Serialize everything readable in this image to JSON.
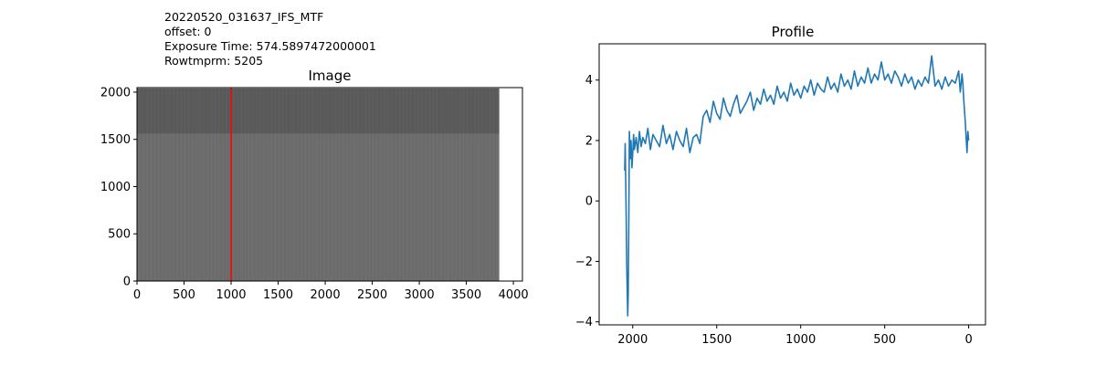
{
  "header_lines": [
    "20220520_031637_IFS_MTF",
    "offset: 0",
    "Exposure Time: 574.5897472000001",
    "Rowtmprm: 5205"
  ],
  "chart_data": [
    {
      "type": "heatmap",
      "title": "Image",
      "xlabel": "",
      "ylabel": "",
      "xlim": [
        0,
        4096
      ],
      "ylim": [
        0,
        2048
      ],
      "x_ticks": [
        "0",
        "500",
        "1000",
        "1500",
        "2000",
        "2500",
        "3000",
        "3500",
        "4000"
      ],
      "y_ticks": [
        "0",
        "500",
        "1000",
        "1500",
        "2000"
      ],
      "image_extent_x": [
        0,
        3850
      ],
      "colormap": "gray",
      "column_marker": 1000,
      "column_marker_color": "#ff0000",
      "regions": [
        {
          "rows": [
            0,
            1560
          ],
          "shade": "#6e6e6e"
        },
        {
          "rows": [
            1560,
            2040
          ],
          "shade": "#5c5c5c"
        }
      ]
    },
    {
      "type": "line",
      "title": "Profile",
      "xlabel": "",
      "ylabel": "",
      "x_reversed": true,
      "xlim": [
        2200,
        -100
      ],
      "ylim": [
        -4.1,
        5.2
      ],
      "x_ticks": [
        2000,
        1500,
        1000,
        500,
        0
      ],
      "y_ticks": [
        -4,
        -2,
        0,
        2,
        4
      ],
      "color": "#1f77b4",
      "series": [
        {
          "x": [
            2048,
            2045,
            2040,
            2035,
            2030,
            2027,
            2024,
            2020,
            2015,
            2010,
            2005,
            2000,
            1995,
            1990,
            1980,
            1970,
            1960,
            1950,
            1940,
            1925,
            1910,
            1895,
            1880,
            1860,
            1840,
            1820,
            1800,
            1780,
            1760,
            1740,
            1720,
            1700,
            1680,
            1660,
            1640,
            1620,
            1600,
            1590,
            1580,
            1560,
            1540,
            1520,
            1500,
            1480,
            1460,
            1440,
            1420,
            1400,
            1380,
            1360,
            1340,
            1320,
            1300,
            1280,
            1260,
            1240,
            1220,
            1200,
            1180,
            1160,
            1140,
            1120,
            1100,
            1080,
            1060,
            1040,
            1020,
            1000,
            980,
            960,
            940,
            920,
            900,
            880,
            860,
            840,
            820,
            800,
            780,
            760,
            740,
            720,
            700,
            680,
            660,
            640,
            620,
            600,
            580,
            560,
            540,
            520,
            500,
            480,
            460,
            440,
            420,
            400,
            380,
            360,
            340,
            320,
            300,
            280,
            260,
            240,
            220,
            200,
            180,
            160,
            140,
            120,
            100,
            80,
            60,
            50,
            40,
            35,
            30,
            25,
            20,
            15,
            10,
            5,
            0
          ],
          "y": [
            1.0,
            1.9,
            0.0,
            -2.3,
            -3.8,
            -3.1,
            -1.0,
            2.3,
            1.4,
            2.0,
            1.1,
            1.6,
            2.2,
            1.7,
            2.1,
            1.6,
            2.3,
            1.8,
            2.1,
            1.9,
            2.4,
            1.7,
            2.2,
            2.0,
            1.8,
            2.5,
            1.9,
            2.2,
            1.7,
            2.3,
            2.0,
            1.8,
            2.4,
            1.6,
            2.1,
            2.2,
            1.9,
            2.4,
            2.8,
            3.0,
            2.6,
            3.3,
            2.9,
            2.7,
            3.4,
            3.0,
            2.8,
            3.2,
            3.5,
            2.9,
            3.1,
            3.3,
            3.6,
            3.0,
            3.4,
            3.2,
            3.7,
            3.3,
            3.5,
            3.2,
            3.8,
            3.4,
            3.6,
            3.3,
            3.9,
            3.5,
            3.7,
            3.4,
            3.8,
            3.6,
            4.0,
            3.5,
            3.9,
            3.7,
            3.6,
            4.1,
            3.7,
            3.9,
            3.6,
            4.2,
            3.8,
            4.0,
            3.7,
            4.3,
            3.8,
            4.1,
            3.9,
            4.4,
            3.9,
            4.2,
            4.0,
            4.6,
            4.0,
            4.2,
            3.9,
            4.3,
            4.1,
            3.8,
            4.2,
            3.9,
            4.1,
            3.7,
            4.0,
            3.8,
            4.1,
            3.9,
            4.8,
            3.8,
            4.0,
            3.7,
            4.1,
            3.8,
            4.0,
            3.9,
            4.3,
            3.6,
            4.2,
            3.9,
            3.4,
            3.0,
            2.6,
            2.1,
            1.6,
            2.3,
            2.0
          ]
        }
      ]
    }
  ]
}
